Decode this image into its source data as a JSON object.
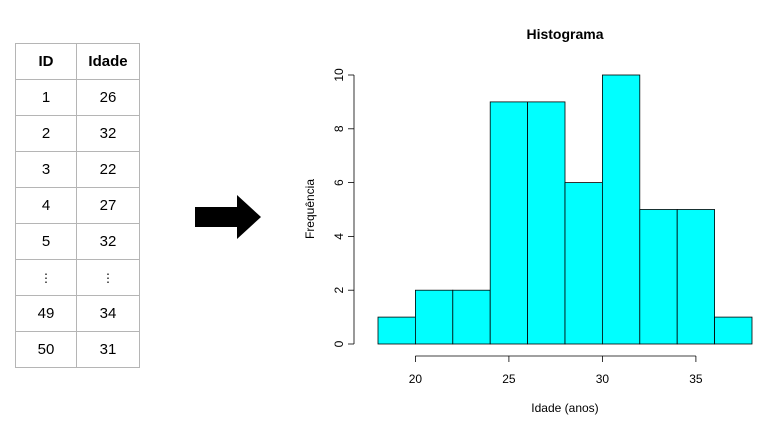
{
  "table": {
    "headers": [
      "ID",
      "Idade"
    ],
    "rows": [
      [
        "1",
        "26"
      ],
      [
        "2",
        "32"
      ],
      [
        "3",
        "22"
      ],
      [
        "4",
        "27"
      ],
      [
        "5",
        "32"
      ],
      [
        "⋮",
        "⋮"
      ],
      [
        "49",
        "34"
      ],
      [
        "50",
        "31"
      ]
    ]
  },
  "arrow_icon": "right-arrow-icon",
  "chart_data": {
    "type": "bar",
    "title": "Histograma",
    "xlabel": "Idade (anos)",
    "ylabel": "Frequência",
    "bins": [
      [
        18,
        20
      ],
      [
        20,
        22
      ],
      [
        22,
        24
      ],
      [
        24,
        26
      ],
      [
        26,
        28
      ],
      [
        28,
        30
      ],
      [
        30,
        32
      ],
      [
        32,
        34
      ],
      [
        34,
        36
      ],
      [
        36,
        38
      ]
    ],
    "values": [
      1,
      2,
      2,
      9,
      9,
      6,
      10,
      5,
      5,
      1
    ],
    "xticks": [
      "20",
      "25",
      "30",
      "35"
    ],
    "yticks": [
      "0",
      "2",
      "4",
      "6",
      "8",
      "10"
    ],
    "xlim": [
      18,
      38
    ],
    "ylim": [
      0,
      10
    ],
    "bar_color": "#00ffff",
    "grid": false
  }
}
